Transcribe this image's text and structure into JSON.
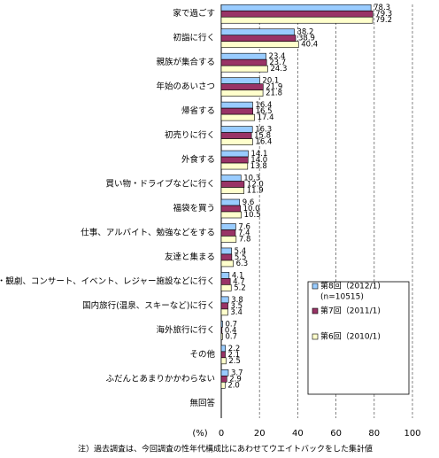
{
  "chart_data": {
    "type": "bar",
    "orientation": "horizontal",
    "categories": [
      "家で過ごす",
      "初詣に行く",
      "親族が集合する",
      "年始のあいさつ",
      "帰省する",
      "初売りに行く",
      "外食する",
      "買い物・ドライブなどに行く",
      "福袋を買う",
      "仕事、アルバイト、勉強などをする",
      "友達と集まる",
      "映画・観劇、コンサート、イベント、レジャー施設などに行く",
      "国内旅行(温泉、スキーなど)に行く",
      "海外旅行に行く",
      "その他",
      "ふだんとあまりかかわらない",
      "無回答"
    ],
    "series": [
      {
        "name": "第8回（2012/1)",
        "color": "#99ccff",
        "values": [
          78.3,
          38.2,
          23.4,
          20.1,
          16.4,
          16.3,
          14.1,
          10.3,
          9.6,
          7.6,
          5.4,
          4.1,
          3.8,
          0.7,
          2.2,
          3.7,
          null
        ],
        "value_labels": [
          "78.3",
          "38.2",
          "23.4",
          "20.1",
          "16.4",
          "16.3",
          "14.1",
          "10.3",
          "9.6",
          "7.6",
          "5.4",
          "4.1",
          "3.8",
          "0.7",
          "2.2",
          "3.7",
          null
        ]
      },
      {
        "name": "第7回（2011/1)",
        "color": "#993366",
        "values": [
          79.3,
          38.9,
          23.7,
          21.9,
          16.5,
          15.8,
          14.0,
          12.0,
          10.0,
          7.4,
          5.5,
          4.7,
          3.5,
          0.4,
          2.1,
          2.9,
          null
        ],
        "value_labels": [
          "79.3",
          "38.9",
          "23.7",
          "21.9",
          "16.5",
          "15.8",
          "14.0",
          "12.0",
          "10.0",
          "7.4",
          "5.5",
          "4.7",
          "3.5",
          "0.4",
          "2.1",
          "2.9",
          null
        ]
      },
      {
        "name": "第6回（2010/1)",
        "color": "#ffffcc",
        "values": [
          79.2,
          40.4,
          24.3,
          21.8,
          17.4,
          16.4,
          13.8,
          11.9,
          10.5,
          7.8,
          6.3,
          5.2,
          3.4,
          0.7,
          2.5,
          2.0,
          null
        ],
        "value_labels": [
          "79.2",
          "40.4",
          "24.3",
          "21.8",
          "17.4",
          "16.4",
          "13.8",
          "11.9",
          "10.5",
          "7.8",
          "6.3",
          "5.2",
          "3.4",
          "0.7",
          "2.5",
          "2.0",
          null
        ]
      }
    ],
    "legend_note": "(n=10515)",
    "xlabel": "(%)",
    "xlim": [
      0,
      100
    ],
    "xticks": [
      0,
      20,
      40,
      60,
      80,
      100
    ],
    "grid": true,
    "note": "注）過去調査は、今回調査の性年代構成比にあわせてウエイトバックをした集計値"
  }
}
